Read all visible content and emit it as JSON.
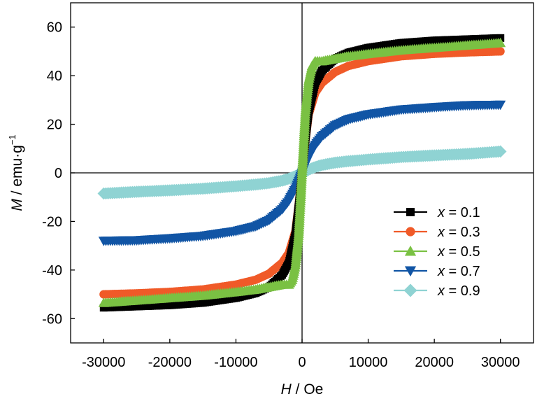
{
  "chart_data": {
    "type": "line",
    "xlim": [
      -35000,
      35000
    ],
    "ylim": [
      -70,
      70
    ],
    "x_ticks": [
      -30000,
      -20000,
      -10000,
      0,
      10000,
      20000,
      30000
    ],
    "y_ticks": [
      -60,
      -40,
      -20,
      0,
      20,
      40,
      60
    ],
    "x_tick_labels": [
      "-30000",
      "-20000",
      "-10000",
      "0",
      "10000",
      "20000",
      "30000"
    ],
    "y_tick_labels": [
      "-60",
      "-40",
      "-20",
      "0",
      "20",
      "40",
      "60"
    ],
    "xlabel": {
      "var": "H",
      "unit": " / Oe"
    },
    "ylabel": {
      "var": "M",
      "unit": " / emu·g",
      "sup": "−1"
    },
    "grid": false,
    "zero_lines": true,
    "legend_position": "bottom-right",
    "series": [
      {
        "name": "x = 0.1",
        "legend_var": "x",
        "legend_value": " = 0.1",
        "color": "#000000",
        "marker": "square",
        "x": [
          -30000,
          -25000,
          -20000,
          -15000,
          -10000,
          -7000,
          -5000,
          -3000,
          -2000,
          -1000,
          -500,
          0,
          500,
          1000,
          2000,
          3000,
          5000,
          7000,
          10000,
          15000,
          20000,
          25000,
          30000
        ],
        "y": [
          -55.5,
          -55.0,
          -54.5,
          -53.5,
          -51.5,
          -49.5,
          -47.0,
          -42.0,
          -37.0,
          -25.0,
          -13.0,
          0,
          13.0,
          25.0,
          37.0,
          42.0,
          47.0,
          49.5,
          51.5,
          53.5,
          54.5,
          55.0,
          55.5
        ]
      },
      {
        "name": "x = 0.3",
        "legend_var": "x",
        "legend_value": " = 0.3",
        "color": "#f05a28",
        "marker": "circle",
        "x": [
          -30000,
          -25000,
          -20000,
          -15000,
          -10000,
          -7000,
          -5000,
          -3000,
          -2000,
          -1000,
          -500,
          0,
          500,
          1000,
          2000,
          3000,
          5000,
          7000,
          10000,
          15000,
          20000,
          25000,
          30000
        ],
        "y": [
          -50.0,
          -49.6,
          -49.0,
          -48.0,
          -46.0,
          -44.0,
          -41.5,
          -37.0,
          -33.0,
          -24.0,
          -13.0,
          0,
          13.0,
          24.0,
          33.0,
          37.0,
          41.5,
          44.0,
          46.0,
          48.0,
          49.0,
          49.6,
          50.0
        ]
      },
      {
        "name": "x = 0.5",
        "legend_var": "x",
        "legend_value": " = 0.5",
        "color": "#7ac143",
        "marker": "triangle-up",
        "x": [
          -30000,
          -25000,
          -20000,
          -15000,
          -10000,
          -7000,
          -5000,
          -3000,
          -2000,
          -1500,
          -1000,
          -500,
          0,
          500,
          1000,
          1500,
          2000,
          3000,
          5000,
          7000,
          10000,
          15000,
          20000,
          25000,
          30000
        ],
        "y": [
          -53.5,
          -52.5,
          -51.5,
          -50.5,
          -49.0,
          -48.0,
          -47.0,
          -46.0,
          -46.0,
          -44.0,
          -38.0,
          -25.0,
          0,
          25.0,
          38.0,
          44.0,
          46.0,
          46.0,
          47.0,
          48.0,
          49.0,
          50.5,
          51.5,
          52.5,
          53.5
        ]
      },
      {
        "name": "x = 0.7",
        "legend_var": "x",
        "legend_value": " = 0.7",
        "color": "#1155a5",
        "marker": "triangle-down",
        "x": [
          -30000,
          -25000,
          -20000,
          -15000,
          -10000,
          -7000,
          -5000,
          -3000,
          -2000,
          -1000,
          -500,
          0,
          500,
          1000,
          2000,
          3000,
          5000,
          7000,
          10000,
          15000,
          20000,
          25000,
          30000
        ],
        "y": [
          -28.0,
          -27.8,
          -27.0,
          -26.0,
          -24.0,
          -22.0,
          -19.5,
          -15.0,
          -11.5,
          -6.5,
          -3.5,
          0,
          3.5,
          6.5,
          11.5,
          15.0,
          19.5,
          22.0,
          24.0,
          26.0,
          27.0,
          27.8,
          28.0
        ]
      },
      {
        "name": "x = 0.9",
        "legend_var": "x",
        "legend_value": " = 0.9",
        "color": "#8fd3d3",
        "marker": "diamond",
        "x": [
          -30000,
          -25000,
          -20000,
          -15000,
          -10000,
          -7000,
          -5000,
          -3000,
          -2000,
          -1000,
          0,
          1000,
          2000,
          3000,
          5000,
          7000,
          10000,
          15000,
          20000,
          25000,
          30000
        ],
        "y": [
          -8.5,
          -7.8,
          -7.2,
          -6.5,
          -5.5,
          -4.8,
          -4.2,
          -3.2,
          -2.4,
          -1.3,
          0,
          1.3,
          2.4,
          3.2,
          4.2,
          4.8,
          5.5,
          6.5,
          7.2,
          7.8,
          8.8
        ]
      }
    ]
  }
}
